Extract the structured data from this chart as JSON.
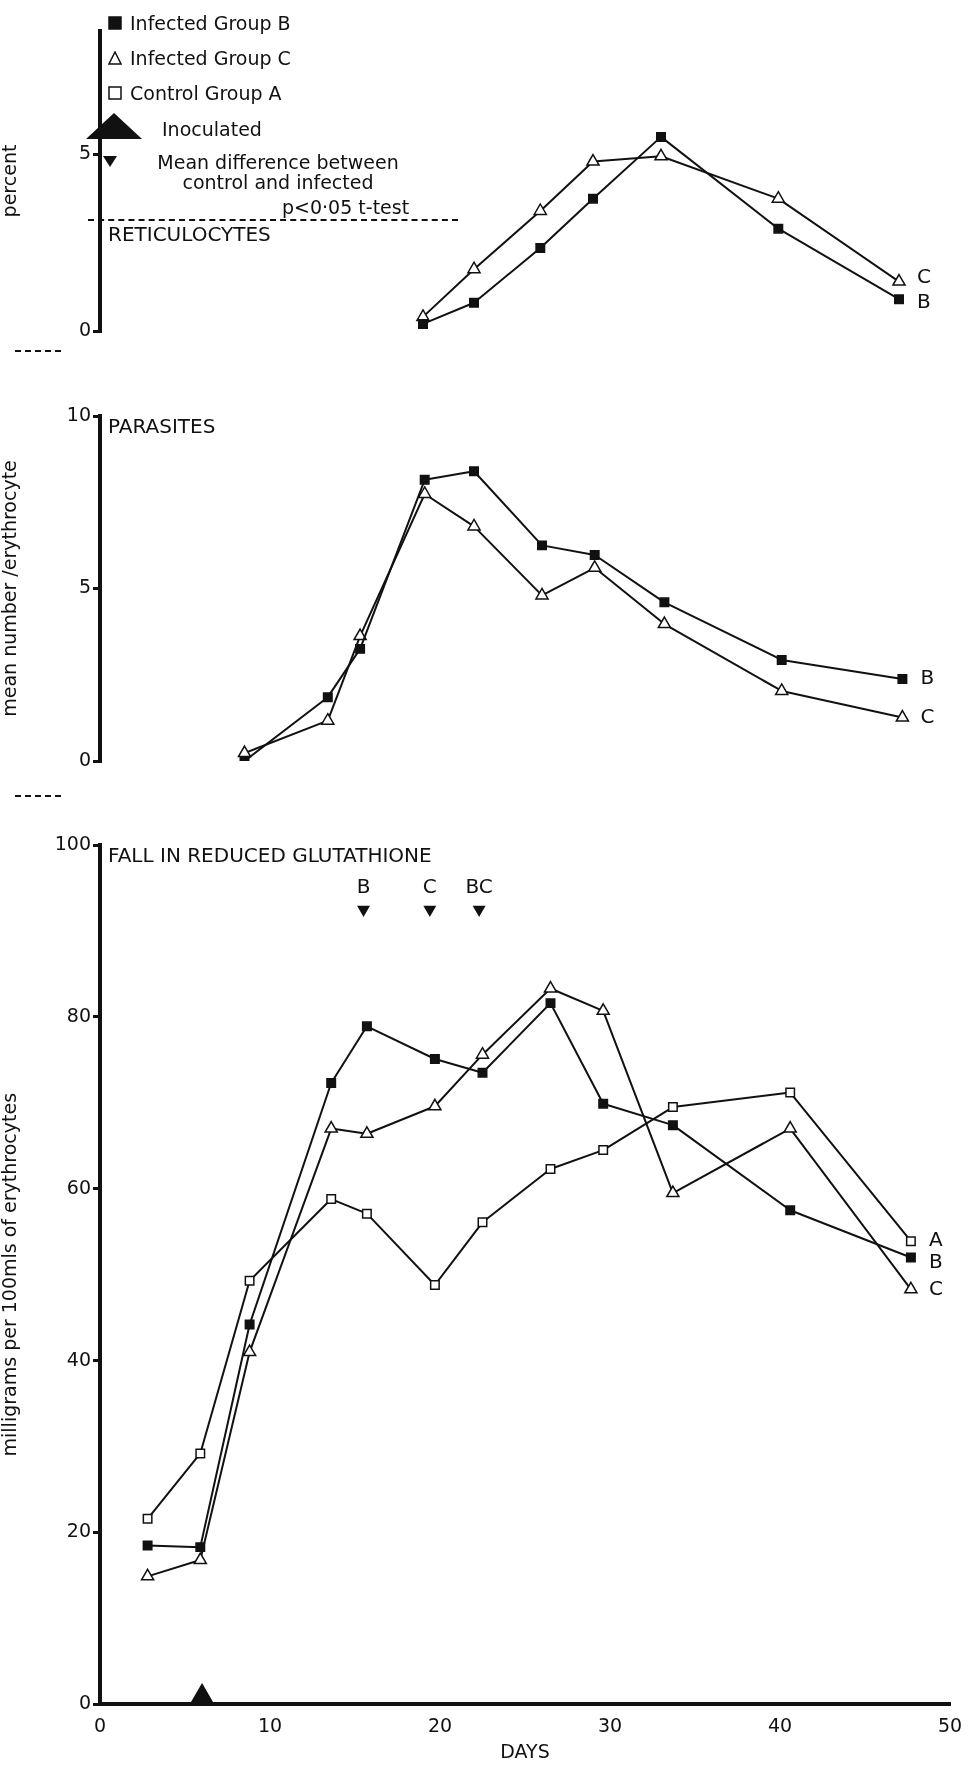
{
  "chart_data": [
    {
      "type": "line",
      "title": "RETICULOCYTES",
      "ylabel": "percent",
      "legend": "top left",
      "tick_labels": "y",
      "grid": false,
      "line_style": "solid",
      "x": [
        19,
        22,
        25.9,
        29,
        33,
        39.9,
        47
      ],
      "xlim": [
        0,
        50
      ],
      "ylim": [
        0,
        8.5
      ],
      "yticks": [
        0,
        5
      ],
      "series": [
        {
          "name": "Infected Group B",
          "color": "#111111",
          "marker": "square",
          "values": [
            0.2,
            0.8,
            2.35,
            3.75,
            5.5,
            2.9,
            0.9
          ]
        },
        {
          "name": "Infected Group C",
          "color": "#111111",
          "marker": "triangle",
          "values": [
            0.4,
            1.75,
            3.4,
            4.8,
            4.95,
            3.75,
            1.4
          ]
        },
        {
          "name": "Control Group A",
          "color": "#111111",
          "marker": "square",
          "values": [
            null,
            null,
            null,
            null,
            null,
            null,
            null
          ]
        }
      ],
      "annotations": [
        "Inoculated",
        "Mean difference between control and infected",
        "p<0·05 t-test",
        {
          "text": "C",
          "x": 47,
          "y": 1.5
        },
        {
          "text": "B",
          "x": 47,
          "y": 0.8
        }
      ]
    },
    {
      "type": "line",
      "title": "PARASITES",
      "ylabel": "mean number /erythrocyte",
      "legend": "right",
      "tick_labels": "y",
      "grid": false,
      "line_style": "solid",
      "x": [
        8.5,
        13.4,
        15.3,
        19.1,
        22,
        26,
        29.1,
        33.2,
        40.1,
        47.2
      ],
      "xlim": [
        0,
        50
      ],
      "ylim": [
        0,
        10
      ],
      "yticks": [
        0,
        5,
        10
      ],
      "series": [
        {
          "name": "B",
          "color": "#111111",
          "marker": "square",
          "values": [
            0,
            1.85,
            3.25,
            8.15,
            8.4,
            6.25,
            5.97,
            4.6,
            2.93,
            2.38
          ]
        },
        {
          "name": "C",
          "color": "#111111",
          "marker": "triangle",
          "values": [
            0.23,
            1.17,
            3.62,
            7.74,
            6.8,
            4.8,
            5.6,
            3.97,
            2.03,
            1.26
          ]
        }
      ]
    },
    {
      "type": "line",
      "title": "FALL IN REDUCED GLUTATHIONE",
      "ylabel": "milligrams per 100mls of erythrocytes",
      "xlabel": "DAYS",
      "legend": "right",
      "grid": false,
      "line_style": "solid",
      "x": [
        2.8,
        5.9,
        8.8,
        13.6,
        15.7,
        19.7,
        22.5,
        26.5,
        29.6,
        33.7,
        40.6,
        47.7
      ],
      "xlim": [
        0,
        50
      ],
      "xticks": [
        0,
        10,
        20,
        30,
        40,
        50
      ],
      "ylim": [
        0,
        100
      ],
      "yticks": [
        0,
        20,
        40,
        60,
        80,
        100
      ],
      "series": [
        {
          "name": "B",
          "color": "#111111",
          "marker": "square",
          "values": [
            18.5,
            18.3,
            44.2,
            72.3,
            78.9,
            75.1,
            73.5,
            81.6,
            69.9,
            67.4,
            57.5,
            52
          ]
        },
        {
          "name": "C",
          "color": "#111111",
          "marker": "triangle",
          "values": [
            14.9,
            16.8,
            41,
            67,
            66.4,
            69.6,
            75.6,
            83.3,
            80.7,
            59.5,
            67,
            48.3
          ]
        },
        {
          "name": "A",
          "color": "#111111",
          "marker": "square",
          "values": [
            21.6,
            29.2,
            49.3,
            58.8,
            57.1,
            48.8,
            56.1,
            62.3,
            64.5,
            69.5,
            71.2,
            53.9
          ]
        },
        {
          "type": "scatter",
          "color": "#111111",
          "marker": "triangle",
          "x": [
            15.5,
            19.4,
            22.3
          ],
          "values": [
            92.5,
            92.5,
            92.5
          ],
          "value_labels": [
            "B",
            "C",
            "BC"
          ]
        },
        {
          "type": "scatter",
          "color": "#111111",
          "marker": "triangle",
          "x": [
            6
          ],
          "values": [
            0
          ]
        }
      ]
    }
  ]
}
